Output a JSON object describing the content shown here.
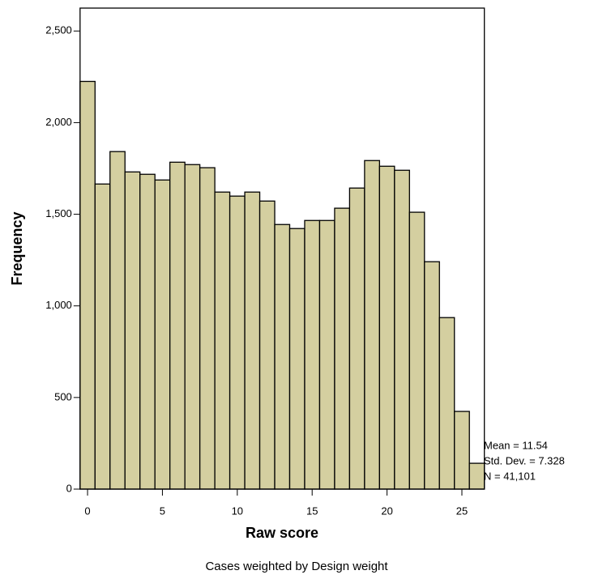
{
  "chart_data": {
    "type": "histogram",
    "x_label": "Raw score",
    "y_label": "Frequency",
    "bins": [
      -0.5,
      0.5,
      1.5,
      2.5,
      3.5,
      4.5,
      5.5,
      6.5,
      7.5,
      8.5,
      9.5,
      10.5,
      11.5,
      12.5,
      13.5,
      14.5,
      15.5,
      16.5,
      17.5,
      18.5,
      19.5,
      20.5,
      21.5,
      22.5,
      23.5,
      24.5,
      25.5,
      26.5
    ],
    "values": [
      2225,
      1665,
      1842,
      1731,
      1718,
      1687,
      1784,
      1771,
      1754,
      1621,
      1599,
      1621,
      1572,
      1444,
      1422,
      1466,
      1466,
      1533,
      1643,
      1793,
      1762,
      1740,
      1511,
      1241,
      936,
      424,
      141
    ],
    "color": "#d4cfa0",
    "xlim": [
      -0.5,
      26.5
    ],
    "xticks": [
      0,
      5,
      10,
      15,
      20,
      25
    ],
    "ylim": [
      0,
      2625
    ],
    "yticks": [
      0,
      500,
      {
        "value": 1000,
        "label": "1,000"
      },
      {
        "value": 1500,
        "label": "1,500"
      },
      {
        "value": 2000,
        "label": "2,000"
      },
      {
        "value": 2500,
        "label": "2,500"
      }
    ],
    "annotations": [
      "Mean = 11.54",
      "Std. Dev. = 7.328",
      "N = 41,101"
    ],
    "footnote": "Cases weighted by Design weight"
  }
}
